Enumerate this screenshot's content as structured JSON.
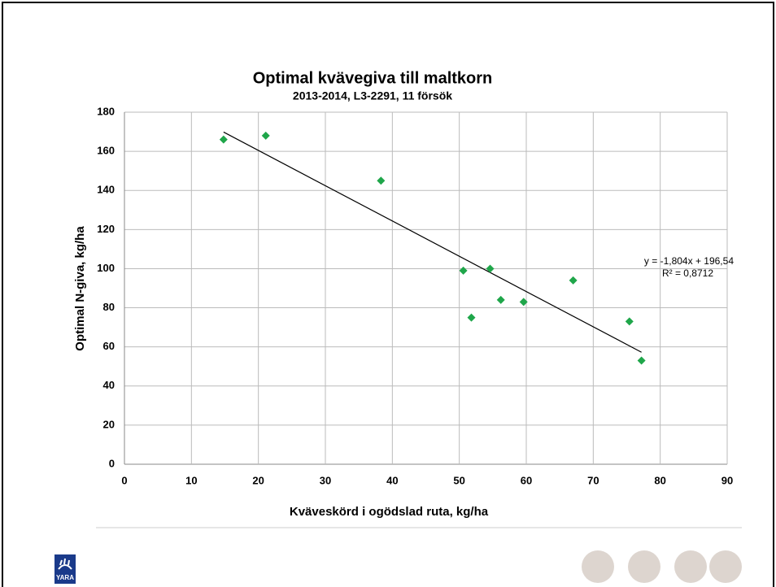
{
  "chart_data": {
    "type": "scatter",
    "title": "Optimal kvävegiva till maltkorn",
    "subtitle": "2013-2014, L3-2291, 11 försök",
    "x_label": "Kväveskörd i ogödslad ruta, kg/ha",
    "y_label": "Optimal N-giva, kg/ha",
    "series": [
      {
        "color": "#1fa64a",
        "x": [
          14.8,
          21.1,
          38.3,
          50.6,
          51.8,
          54.6,
          56.2,
          59.6,
          67,
          75.4,
          77.2
        ],
        "values": [
          166,
          168,
          145,
          99,
          75,
          100,
          84,
          83,
          94,
          73,
          53
        ]
      }
    ],
    "trendline": {
      "label": "y = -1,804x + 196,54",
      "r2_label": "R² = 0,8712",
      "slope": -1.804,
      "intercept": 196.54,
      "x_range": [
        14.8,
        77.2
      ]
    },
    "xlim": [
      0,
      90
    ],
    "xticks": [
      0,
      10,
      20,
      30,
      40,
      50,
      60,
      70,
      80,
      90
    ],
    "ylim": [
      0,
      180
    ],
    "yticks": [
      0,
      20,
      40,
      60,
      80,
      100,
      120,
      140,
      160,
      180
    ],
    "grid": true
  },
  "logo": "YARA"
}
